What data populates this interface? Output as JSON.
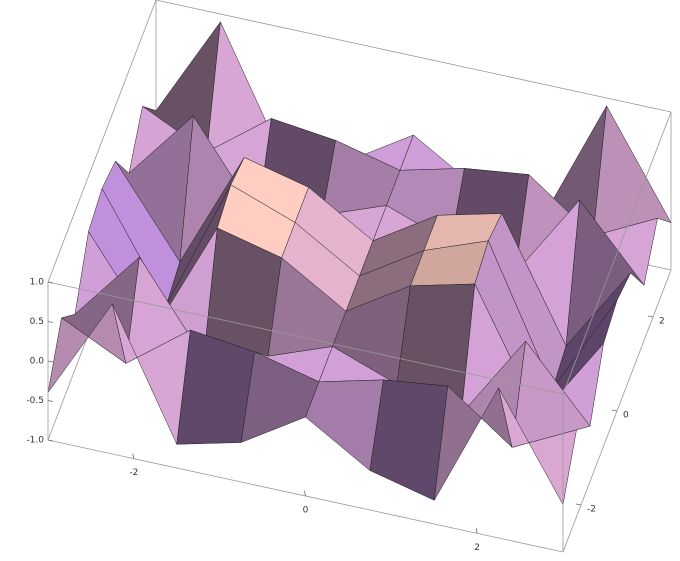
{
  "chart_data": {
    "type": "surface",
    "x": [
      -3,
      -2.25,
      -1.5,
      -0.75,
      0,
      0.75,
      1.5,
      2.25,
      3
    ],
    "y": [
      -3,
      -2.25,
      -1.5,
      -0.75,
      0,
      0.75,
      1.5,
      2.25,
      3
    ],
    "z": [
      [
        -0.4,
        0.1,
        -0.3,
        0.3,
        0.4,
        0.3,
        -0.3,
        0.1,
        -0.4
      ],
      [
        0.9,
        -0.3,
        0.6,
        -0.8,
        -0.9,
        -0.8,
        0.6,
        -0.3,
        0.9
      ],
      [
        -0.7,
        0.3,
        -0.5,
        0.7,
        0.8,
        0.7,
        -0.5,
        0.3,
        -0.7
      ],
      [
        -0.5,
        0.2,
        -0.3,
        0.5,
        0.5,
        0.5,
        -0.3,
        0.2,
        -0.5
      ],
      [
        0,
        0,
        0,
        0,
        0,
        0,
        0,
        0,
        0
      ],
      [
        -0.5,
        0.2,
        -0.3,
        0.5,
        0.5,
        0.5,
        -0.3,
        0.2,
        -0.5
      ],
      [
        -0.7,
        0.3,
        -0.5,
        0.7,
        0.8,
        0.7,
        -0.5,
        0.3,
        -0.7
      ],
      [
        0.9,
        -0.3,
        0.6,
        -0.8,
        -0.9,
        -0.8,
        0.6,
        -0.3,
        0.9
      ],
      [
        -0.4,
        0.1,
        -0.3,
        0.3,
        0.4,
        0.3,
        -0.3,
        0.1,
        -0.4
      ]
    ],
    "xlim": [
      -3,
      3
    ],
    "ylim": [
      -3,
      3
    ],
    "zlim": [
      -1,
      1
    ],
    "xticks": [
      -2,
      0,
      2
    ],
    "yticks": [
      -2,
      0,
      2
    ],
    "zticks": [
      {
        "value": -1,
        "label": "-1.0"
      },
      {
        "value": -0.5,
        "label": "-0.5"
      },
      {
        "value": 0,
        "label": "0.0"
      },
      {
        "value": 0.5,
        "label": "0.5"
      },
      {
        "value": 1,
        "label": "1.0"
      }
    ],
    "color_low": "#7a52d6",
    "color_high": "#f7c89e"
  }
}
